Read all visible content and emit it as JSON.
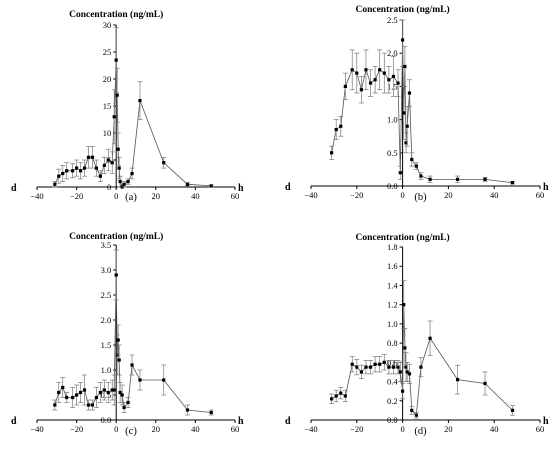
{
  "chart_data": [
    {
      "type": "line",
      "panel_label": "(a)",
      "title": "Concentration (ng/mL)",
      "x_unit_left": "d",
      "x_unit_right": "h",
      "xlim": [
        -40,
        60
      ],
      "ylim": [
        0,
        30
      ],
      "xticks": [
        -40,
        -20,
        0,
        20,
        40,
        60
      ],
      "xtick_labels": [
        "−40",
        "−20",
        "0",
        "20",
        "40",
        "60"
      ],
      "yticks": [
        0,
        5,
        10,
        15,
        20,
        25,
        30
      ],
      "ytick_labels": [
        "0",
        "5",
        "10",
        "15",
        "20",
        "25",
        "30"
      ],
      "series": [
        {
          "x": [
            -31,
            -29,
            -27,
            -25,
            -22,
            -20,
            -18,
            -16,
            -14,
            -12,
            -10,
            -8,
            -6,
            -4,
            -2,
            -1,
            0,
            0.5,
            1,
            1.5,
            2,
            3,
            4,
            6,
            8,
            12,
            24,
            36,
            48
          ],
          "y": [
            0.5,
            2.0,
            2.5,
            3.0,
            3.0,
            3.5,
            3.0,
            3.5,
            5.5,
            5.5,
            3.5,
            2.0,
            4.0,
            5.0,
            4.5,
            13.0,
            23.5,
            17.0,
            7.0,
            3.5,
            1.0,
            0.0,
            0.5,
            1.0,
            2.5,
            16.0,
            4.5,
            0.5,
            0.2
          ],
          "err": [
            0.5,
            1.3,
            1.5,
            1.5,
            1.3,
            1.5,
            1.5,
            1.5,
            2.0,
            2.0,
            1.5,
            1.0,
            1.5,
            2.0,
            2.0,
            5.0,
            6.0,
            5.0,
            3.0,
            2.0,
            1.0,
            0.5,
            0.5,
            0.5,
            1.0,
            3.5,
            1.0,
            0.3,
            0.2
          ]
        }
      ]
    },
    {
      "type": "line",
      "panel_label": "(b)",
      "title": "Concentration (ng/mL)",
      "x_unit_left": "d",
      "x_unit_right": "h",
      "xlim": [
        -40,
        60
      ],
      "ylim": [
        0,
        2.5
      ],
      "xticks": [
        -40,
        -20,
        0,
        20,
        40,
        60
      ],
      "xtick_labels": [
        "−40",
        "−20",
        "0",
        "20",
        "40",
        "60"
      ],
      "yticks": [
        0,
        0.5,
        1.0,
        1.5,
        2.0,
        2.5
      ],
      "ytick_labels": [
        "0.0",
        "0.5",
        "1.0",
        "1.5",
        "2.0",
        "2.5"
      ],
      "series": [
        {
          "x": [
            -31,
            -29,
            -27,
            -25,
            -22,
            -20,
            -18,
            -16,
            -14,
            -12,
            -10,
            -8,
            -6,
            -4,
            -2,
            -1,
            0,
            0.5,
            1,
            1.5,
            2,
            3,
            4,
            6,
            8,
            12,
            24,
            36,
            48
          ],
          "y": [
            0.5,
            0.85,
            0.9,
            1.5,
            1.75,
            1.7,
            1.45,
            1.75,
            1.55,
            1.6,
            1.75,
            1.7,
            1.6,
            1.65,
            1.55,
            0.2,
            2.2,
            1.1,
            1.8,
            0.65,
            0.9,
            1.4,
            0.4,
            0.3,
            0.15,
            0.1,
            0.1,
            0.1,
            0.05
          ],
          "err": [
            0.1,
            0.15,
            0.15,
            0.2,
            0.3,
            0.3,
            0.2,
            0.3,
            0.2,
            0.2,
            0.3,
            0.3,
            0.2,
            0.3,
            0.2,
            0.1,
            0.4,
            0.4,
            0.3,
            0.15,
            0.3,
            0.2,
            0.1,
            0.05,
            0.05,
            0.05,
            0.05,
            0.03,
            0.02
          ]
        }
      ]
    },
    {
      "type": "line",
      "panel_label": "(c)",
      "title": "Concentration (ng/mL)",
      "x_unit_left": "d",
      "x_unit_right": "h",
      "xlim": [
        -40,
        60
      ],
      "ylim": [
        0,
        3.5
      ],
      "xticks": [
        -40,
        -20,
        0,
        20,
        40,
        60
      ],
      "xtick_labels": [
        "−40",
        "−20",
        "0",
        "20",
        "40",
        "60"
      ],
      "yticks": [
        0,
        0.5,
        1.0,
        1.5,
        2.0,
        2.5,
        3.0,
        3.5
      ],
      "ytick_labels": [
        "0.0",
        "0.5",
        "1.0",
        "1.5",
        "2.0",
        "2.5",
        "3.0",
        "3.5"
      ],
      "series": [
        {
          "x": [
            -31,
            -29,
            -27,
            -25,
            -22,
            -20,
            -18,
            -16,
            -14,
            -12,
            -10,
            -8,
            -6,
            -4,
            -2,
            -1,
            0,
            0.5,
            1,
            1.5,
            2,
            3,
            4,
            6,
            8,
            12,
            24,
            36,
            48
          ],
          "y": [
            0.3,
            0.55,
            0.65,
            0.45,
            0.45,
            0.5,
            0.55,
            0.6,
            0.3,
            0.3,
            0.45,
            0.55,
            0.6,
            0.55,
            0.6,
            0.6,
            2.9,
            1.3,
            1.6,
            1.2,
            0.55,
            0.5,
            0.25,
            0.35,
            1.1,
            0.8,
            0.8,
            0.2,
            0.15
          ],
          "err": [
            0.1,
            0.2,
            0.2,
            0.1,
            0.2,
            0.2,
            0.2,
            0.3,
            0.1,
            0.1,
            0.2,
            0.2,
            0.2,
            0.2,
            0.2,
            0.3,
            0.5,
            0.4,
            0.3,
            0.3,
            0.2,
            0.2,
            0.1,
            0.1,
            0.2,
            0.2,
            0.3,
            0.1,
            0.05
          ]
        }
      ]
    },
    {
      "type": "line",
      "panel_label": "(d)",
      "title": "Concentration (ng/mL)",
      "x_unit_left": "d",
      "x_unit_right": "h",
      "xlim": [
        -40,
        60
      ],
      "ylim": [
        0,
        1.8
      ],
      "xticks": [
        -40,
        -20,
        0,
        20,
        40,
        60
      ],
      "xtick_labels": [
        "−40",
        "−20",
        "0",
        "20",
        "40",
        "60"
      ],
      "yticks": [
        0,
        0.2,
        0.4,
        0.6,
        0.8,
        1.0,
        1.2,
        1.4,
        1.6,
        1.8
      ],
      "ytick_labels": [
        "0.0",
        "0.2",
        "0.4",
        "0.6",
        "0.8",
        "1.0",
        "1.2",
        "1.4",
        "1.6",
        "1.8"
      ],
      "series": [
        {
          "x": [
            -31,
            -29,
            -27,
            -25,
            -22,
            -20,
            -18,
            -16,
            -14,
            -12,
            -10,
            -8,
            -6,
            -4,
            -2,
            -1,
            0,
            0.5,
            1,
            1.5,
            2,
            3,
            4,
            6,
            8,
            12,
            24,
            36,
            48
          ],
          "y": [
            0.22,
            0.25,
            0.28,
            0.25,
            0.58,
            0.55,
            0.5,
            0.55,
            0.55,
            0.58,
            0.58,
            0.6,
            0.55,
            0.55,
            0.55,
            0.5,
            0.3,
            1.2,
            0.75,
            0.55,
            0.5,
            0.48,
            0.1,
            0.05,
            0.55,
            0.85,
            0.42,
            0.38,
            0.1
          ],
          "err": [
            0.05,
            0.06,
            0.06,
            0.06,
            0.08,
            0.08,
            0.07,
            0.07,
            0.07,
            0.08,
            0.08,
            0.08,
            0.07,
            0.07,
            0.07,
            0.1,
            0.08,
            0.25,
            0.2,
            0.15,
            0.1,
            0.1,
            0.04,
            0.03,
            0.1,
            0.18,
            0.15,
            0.12,
            0.05
          ]
        }
      ]
    }
  ]
}
